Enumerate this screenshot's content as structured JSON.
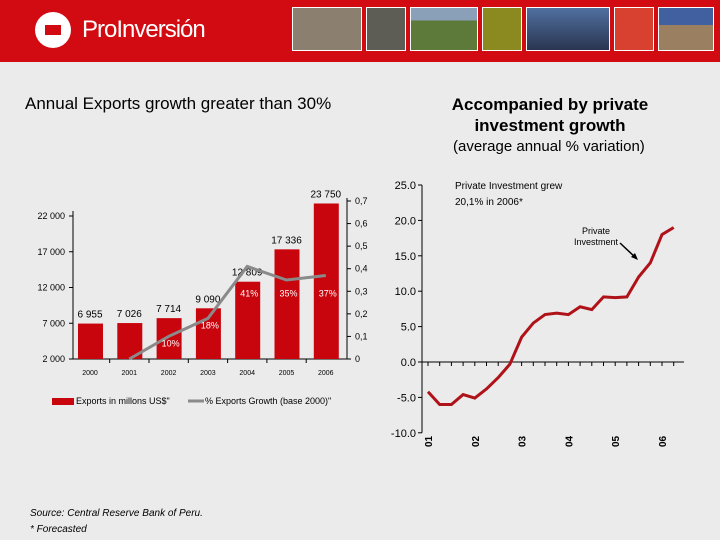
{
  "header": {
    "brand": "ProInversión"
  },
  "left_title": "Annual Exports growth greater than 30%",
  "right_title": "Accompanied by private investment growth",
  "right_subtitle": "(average annual  % variation)",
  "source": "Source: Central Reserve Bank of Peru.",
  "footnote": "* Forecasted",
  "colors": {
    "header": "#d20a11",
    "bar": "#c8040c",
    "line_gray": "#8a8a8a",
    "line_red": "#b0121a"
  },
  "chart_data": [
    {
      "type": "bar",
      "categories": [
        "2000",
        "2001",
        "2002",
        "2003",
        "2004",
        "2005",
        "2006"
      ],
      "series": [
        {
          "name": "Exports in millons US$\"",
          "values": [
            6955,
            7026,
            7714,
            9090,
            12809,
            17336,
            23750
          ],
          "labels": [
            "6 955",
            "7 026",
            "7 714",
            "9 090",
            "12 809",
            "17 336",
            "23 750"
          ]
        },
        {
          "name": "% Exports Growth (base 2000)\"",
          "type": "line",
          "axis": "right",
          "values": [
            null,
            0,
            0.1,
            0.18,
            0.41,
            0.35,
            0.37
          ],
          "labels": [
            "",
            "",
            "10%",
            "18%",
            "41%",
            "35%",
            "37%"
          ]
        }
      ],
      "yticks": [
        "2 000",
        "7 000",
        "12 000",
        "17 000",
        "22 000"
      ],
      "ylim": [
        2000,
        24000
      ],
      "y2ticks": [
        "0",
        "0,1",
        "0,2",
        "0,3",
        "0,4",
        "0,5",
        "0,6",
        "0,7"
      ],
      "y2lim": [
        0,
        0.7
      ]
    },
    {
      "type": "line",
      "annotation": "Private Investment grew 20,1% in 2006*",
      "annotation_lines": [
        "Private Investment grew",
        "20,1% in 2006*"
      ],
      "series_label": [
        "Private",
        "Investment"
      ],
      "xticks": [
        "01",
        "02",
        "03",
        "04",
        "05",
        "06"
      ],
      "yticks": [
        "25.0",
        "20.0",
        "15.0",
        "10.0",
        "5.0",
        "0.0",
        "-5.0",
        "-10.0"
      ],
      "ylim": [
        -10,
        25
      ],
      "values": [
        -4.2,
        -6,
        -6,
        -4.6,
        -5.1,
        -3.8,
        -2.2,
        -0.3,
        3.5,
        5.5,
        6.7,
        6.9,
        6.7,
        7.8,
        7.4,
        9.2,
        9.1,
        9.2,
        12,
        14,
        18,
        19
      ]
    }
  ]
}
